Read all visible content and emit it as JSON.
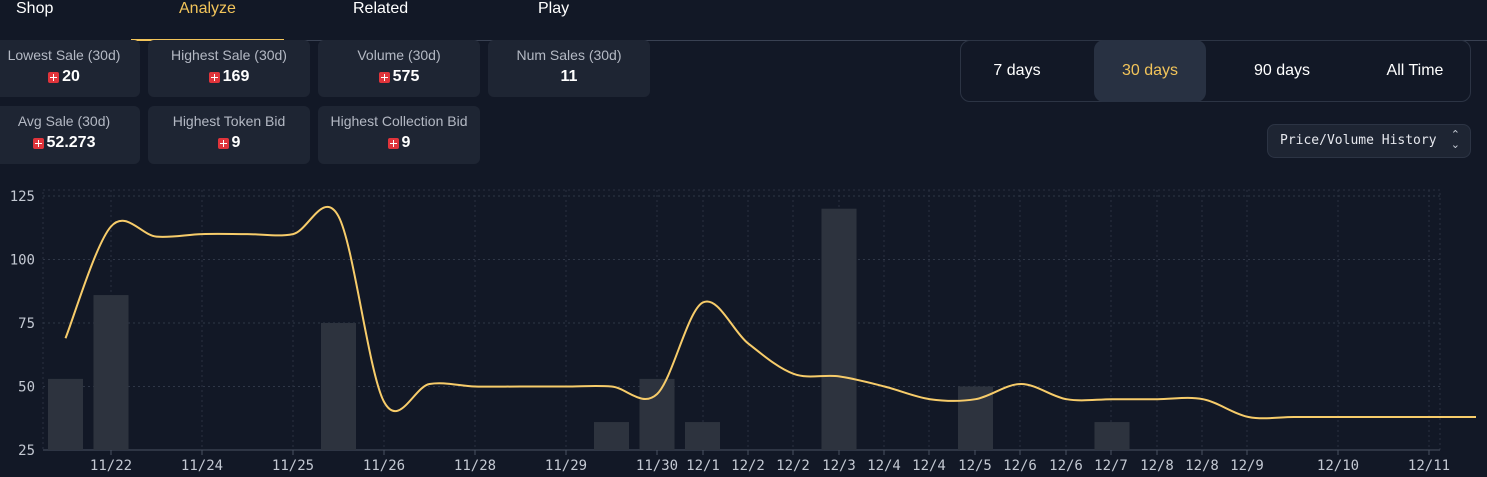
{
  "tabs": [
    {
      "label": "Shop",
      "active": false
    },
    {
      "label": "Analyze",
      "active": true
    },
    {
      "label": "Related",
      "active": false
    },
    {
      "label": "Play",
      "active": false
    }
  ],
  "stats": [
    {
      "label": "Lowest Sale (30d)",
      "value": "20",
      "coin": true
    },
    {
      "label": "Highest Sale (30d)",
      "value": "169",
      "coin": true
    },
    {
      "label": "Volume (30d)",
      "value": "575",
      "coin": true
    },
    {
      "label": "Num Sales (30d)",
      "value": "11",
      "coin": false
    },
    {
      "label": "Avg Sale (30d)",
      "value": "52.273",
      "coin": true
    },
    {
      "label": "Highest Token Bid",
      "value": "9",
      "coin": true
    },
    {
      "label": "Highest Collection Bid",
      "value": "9",
      "coin": true
    }
  ],
  "coin_icon": "red-token-icon",
  "ranges": [
    {
      "label": "7 days",
      "active": false
    },
    {
      "label": "30 days",
      "active": true
    },
    {
      "label": "90 days",
      "active": false
    },
    {
      "label": "All Time",
      "active": false
    }
  ],
  "select": {
    "value": "Price/Volume History",
    "icon": "chevron-up-down-icon"
  },
  "colors": {
    "accent": "#f2c45a",
    "line": "#f7cc6a",
    "bar": "#2d333e",
    "background": "#121826"
  },
  "chart_data": {
    "type": "bar+line",
    "grid": true,
    "ylim": [
      25,
      125
    ],
    "yticks": [
      25,
      50,
      75,
      100,
      125
    ],
    "xticks": [
      "11/22",
      "11/24",
      "11/25",
      "11/26",
      "11/28",
      "11/29",
      "11/30",
      "12/1",
      "12/2",
      "12/2",
      "12/3",
      "12/4",
      "12/4",
      "12/5",
      "12/6",
      "12/6",
      "12/7",
      "12/8",
      "12/8",
      "12/9",
      "12/10",
      "12/11"
    ],
    "bars": [
      {
        "slot": 0,
        "value": 53
      },
      {
        "slot": 1,
        "value": 86
      },
      {
        "slot": 6,
        "value": 75
      },
      {
        "slot": 12,
        "value": 36
      },
      {
        "slot": 13,
        "value": 53
      },
      {
        "slot": 14,
        "value": 36
      },
      {
        "slot": 17,
        "value": 120
      },
      {
        "slot": 20,
        "value": 50
      },
      {
        "slot": 23,
        "value": 36
      }
    ],
    "line": [
      {
        "slot": 0,
        "value": 69
      },
      {
        "slot": 1,
        "value": 113
      },
      {
        "slot": 2,
        "value": 109
      },
      {
        "slot": 3,
        "value": 110
      },
      {
        "slot": 4,
        "value": 110
      },
      {
        "slot": 5,
        "value": 110
      },
      {
        "slot": 6,
        "value": 117
      },
      {
        "slot": 7,
        "value": 44
      },
      {
        "slot": 8,
        "value": 51
      },
      {
        "slot": 9,
        "value": 50
      },
      {
        "slot": 10,
        "value": 50
      },
      {
        "slot": 11,
        "value": 50
      },
      {
        "slot": 12,
        "value": 50
      },
      {
        "slot": 13,
        "value": 47
      },
      {
        "slot": 14,
        "value": 83
      },
      {
        "slot": 15,
        "value": 67
      },
      {
        "slot": 16,
        "value": 55
      },
      {
        "slot": 17,
        "value": 54
      },
      {
        "slot": 18,
        "value": 50
      },
      {
        "slot": 19,
        "value": 45
      },
      {
        "slot": 20,
        "value": 45
      },
      {
        "slot": 21,
        "value": 51
      },
      {
        "slot": 22,
        "value": 45
      },
      {
        "slot": 23,
        "value": 45
      },
      {
        "slot": 24,
        "value": 45
      },
      {
        "slot": 25,
        "value": 45
      },
      {
        "slot": 26,
        "value": 38
      },
      {
        "slot": 27,
        "value": 38
      },
      {
        "slot": 28,
        "value": 38
      },
      {
        "slot": 29,
        "value": 38
      },
      {
        "slot": 30,
        "value": 38
      },
      {
        "slot": 31,
        "value": 38
      }
    ]
  }
}
